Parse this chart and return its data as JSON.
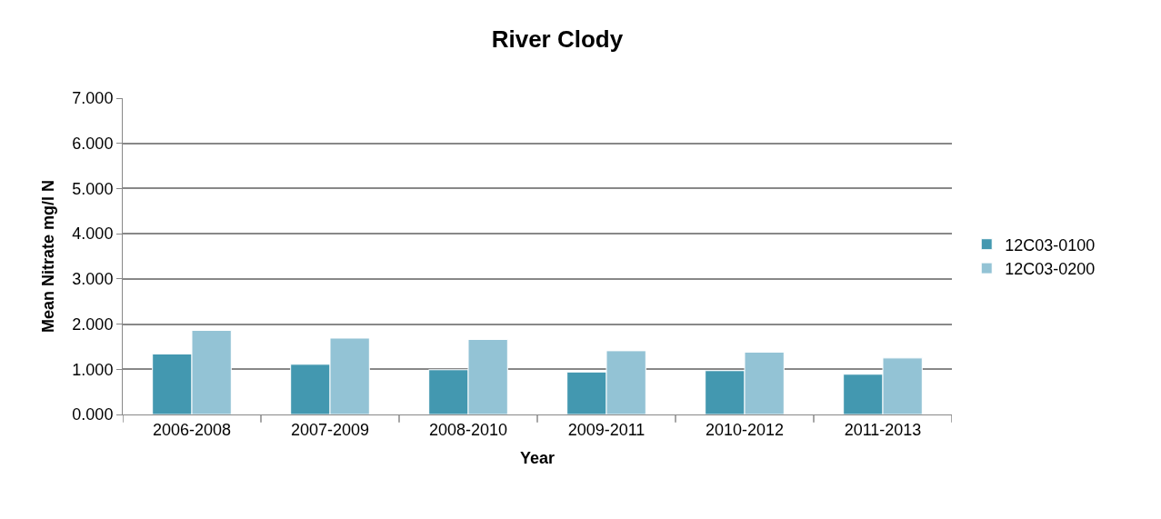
{
  "chart_data": {
    "type": "bar",
    "title": "River Clody",
    "xlabel": "Year",
    "ylabel": "Mean Nitrate mg/l N",
    "categories": [
      "2006-2008",
      "2007-2009",
      "2008-2010",
      "2009-2011",
      "2010-2012",
      "2011-2013"
    ],
    "series": [
      {
        "name": "12C03-0100",
        "color": "#4398b0",
        "values": [
          1.34,
          1.11,
          0.99,
          0.94,
          0.97,
          0.89
        ]
      },
      {
        "name": "12C03-0200",
        "color": "#93c3d5",
        "values": [
          1.86,
          1.69,
          1.66,
          1.41,
          1.38,
          1.25
        ]
      }
    ],
    "ylim": [
      0,
      7
    ],
    "yticks": [
      {
        "value": 0,
        "label": "0.000"
      },
      {
        "value": 1,
        "label": "1.000"
      },
      {
        "value": 2,
        "label": "2.000"
      },
      {
        "value": 3,
        "label": "3.000"
      },
      {
        "value": 4,
        "label": "4.000"
      },
      {
        "value": 5,
        "label": "5.000"
      },
      {
        "value": 6,
        "label": "6.000"
      },
      {
        "value": 7,
        "label": "7.000"
      }
    ],
    "grid": "y",
    "legend": "right"
  }
}
